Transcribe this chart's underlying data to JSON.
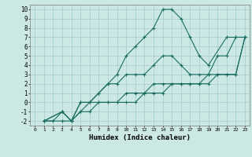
{
  "title": "",
  "xlabel": "Humidex (Indice chaleur)",
  "bg_color": "#cce8e4",
  "grid_color": "#aacfca",
  "line_color": "#1a6e64",
  "xlim": [
    -0.5,
    23.5
  ],
  "ylim": [
    -2.5,
    10.5
  ],
  "xticks": [
    0,
    1,
    2,
    3,
    4,
    5,
    6,
    7,
    8,
    9,
    10,
    11,
    12,
    13,
    14,
    15,
    16,
    17,
    18,
    19,
    20,
    21,
    22,
    23
  ],
  "yticks": [
    -2,
    -1,
    0,
    1,
    2,
    3,
    4,
    5,
    6,
    7,
    8,
    9,
    10
  ],
  "lines": [
    {
      "x": [
        1,
        2,
        3,
        4,
        5,
        6,
        7,
        8,
        9,
        10,
        11,
        12,
        13,
        14,
        15,
        16,
        17,
        18,
        19,
        21,
        22,
        23
      ],
      "y": [
        -2,
        -2,
        -1,
        -2,
        -1,
        0,
        1,
        2,
        3,
        5,
        6,
        7,
        8,
        10,
        10,
        9,
        7,
        5,
        4,
        7,
        7,
        7
      ]
    },
    {
      "x": [
        1,
        3,
        4,
        5,
        6,
        7,
        8,
        9,
        10,
        11,
        12,
        13,
        14,
        15,
        16,
        17,
        18,
        19,
        20,
        21,
        22,
        23
      ],
      "y": [
        -2,
        -1,
        -2,
        0,
        0,
        1,
        2,
        2,
        3,
        3,
        3,
        4,
        5,
        5,
        4,
        3,
        3,
        3,
        5,
        5,
        7,
        7
      ]
    },
    {
      "x": [
        1,
        3,
        4,
        5,
        6,
        7,
        8,
        9,
        10,
        11,
        12,
        13,
        14,
        15,
        16,
        17,
        18,
        19,
        20,
        21,
        22,
        23
      ],
      "y": [
        -2,
        -1,
        -2,
        0,
        0,
        0,
        0,
        0,
        1,
        1,
        1,
        2,
        2,
        2,
        2,
        2,
        2,
        3,
        3,
        3,
        3,
        7
      ]
    },
    {
      "x": [
        1,
        3,
        4,
        5,
        6,
        7,
        8,
        9,
        10,
        11,
        12,
        13,
        14,
        15,
        16,
        17,
        18,
        19,
        20,
        21,
        22,
        23
      ],
      "y": [
        -2,
        -2,
        -2,
        -1,
        -1,
        0,
        0,
        0,
        0,
        0,
        1,
        1,
        1,
        2,
        2,
        2,
        2,
        2,
        3,
        3,
        3,
        7
      ]
    }
  ]
}
